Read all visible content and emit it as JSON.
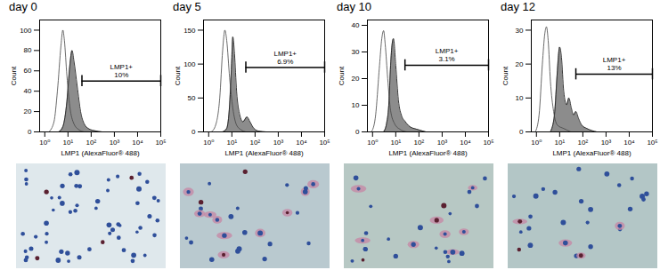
{
  "chart_data": [
    {
      "type": "area",
      "title": "day 0",
      "x_label": "LMP1 (AlexaFluor® 488)",
      "y_label": "Count",
      "log": "x",
      "xlim": [
        0.6,
        100000
      ],
      "xticks": [
        {
          "value": 1,
          "label": "10⁰"
        },
        {
          "value": 10,
          "label": "10¹"
        },
        {
          "value": 100,
          "label": "10²"
        },
        {
          "value": 1000,
          "label": "10³"
        },
        {
          "value": 10000,
          "label": "10⁴"
        },
        {
          "value": 100000,
          "label": "10⁵"
        }
      ],
      "ylim": [
        0,
        110
      ],
      "yticks": [
        0,
        20,
        40,
        60,
        80,
        100
      ],
      "series": [
        {
          "color": "#8c8c8c",
          "x": [
            4,
            6,
            9,
            12,
            15,
            18,
            25,
            35,
            50,
            80,
            150,
            300
          ],
          "values": [
            0,
            5,
            30,
            65,
            80,
            70,
            45,
            20,
            8,
            3,
            1,
            0
          ]
        },
        {
          "color": "#ffffff",
          "x": [
            1.5,
            2.5,
            3.5,
            5,
            6,
            7,
            9,
            12,
            18,
            30,
            50
          ],
          "values": [
            0,
            10,
            40,
            85,
            100,
            90,
            55,
            25,
            8,
            2,
            0
          ]
        }
      ],
      "annotations": [
        {
          "text": "LMP1+",
          "subtext": "10%",
          "x": [
            40,
            100000
          ],
          "y": 50
        }
      ]
    },
    {
      "type": "area",
      "title": "day 5",
      "x_label": "LMP1 (AlexaFluor® 488)",
      "y_label": "Count",
      "log": "x",
      "xlim": [
        0.6,
        100000
      ],
      "xticks": [
        {
          "value": 1,
          "label": "10⁰"
        },
        {
          "value": 10,
          "label": "10¹"
        },
        {
          "value": 100,
          "label": "10²"
        },
        {
          "value": 1000,
          "label": "10³"
        },
        {
          "value": 10000,
          "label": "10⁴"
        },
        {
          "value": 100000,
          "label": "10⁵"
        }
      ],
      "ylim": [
        0,
        165
      ],
      "yticks": [
        0,
        50,
        100,
        150
      ],
      "series": [
        {
          "color": "#8c8c8c",
          "x": [
            4,
            6,
            8,
            10,
            11,
            13,
            16,
            22,
            30,
            45,
            60,
            90,
            150,
            300
          ],
          "values": [
            0,
            5,
            40,
            110,
            140,
            115,
            60,
            25,
            15,
            22,
            15,
            5,
            1,
            0
          ]
        },
        {
          "color": "#ffffff",
          "x": [
            1.3,
            2,
            3,
            4,
            5,
            6,
            8,
            11,
            16,
            25,
            40
          ],
          "values": [
            0,
            10,
            50,
            120,
            150,
            135,
            80,
            35,
            10,
            3,
            0
          ]
        }
      ],
      "annotations": [
        {
          "text": "LMP1+",
          "subtext": "6.9%",
          "x": [
            40,
            100000
          ],
          "y": 95
        }
      ]
    },
    {
      "type": "area",
      "title": "day 10",
      "x_label": "LMP1 (AlexaFluor® 488)",
      "y_label": "Count",
      "log": "x",
      "xlim": [
        0.6,
        100000
      ],
      "xticks": [
        {
          "value": 1,
          "label": "10⁰"
        },
        {
          "value": 10,
          "label": "10¹"
        },
        {
          "value": 100,
          "label": "10²"
        },
        {
          "value": 1000,
          "label": "10³"
        },
        {
          "value": 10000,
          "label": "10⁴"
        },
        {
          "value": 100000,
          "label": "10⁵"
        }
      ],
      "ylim": [
        0,
        42
      ],
      "yticks": [
        0,
        10,
        20,
        30,
        40
      ],
      "series": [
        {
          "color": "#8c8c8c",
          "x": [
            3,
            4,
            5,
            6,
            7,
            8,
            10,
            13,
            18,
            25,
            40,
            80,
            200
          ],
          "values": [
            0,
            3,
            10,
            25,
            33,
            35,
            25,
            12,
            6,
            4,
            2,
            1,
            0
          ]
        },
        {
          "color": "#ffffff",
          "x": [
            0.9,
            1.3,
            2,
            2.5,
            3,
            3.5,
            4.5,
            6,
            9,
            15,
            30
          ],
          "values": [
            0,
            5,
            25,
            35,
            38,
            33,
            20,
            8,
            3,
            1,
            0
          ]
        }
      ],
      "annotations": [
        {
          "text": "LMP1+",
          "subtext": "3.1%",
          "x": [
            25,
            100000
          ],
          "y": 25
        }
      ]
    },
    {
      "type": "area",
      "title": "day 12",
      "x_label": "LMP1 (AlexaFluor® 488)",
      "y_label": "Count",
      "log": "x",
      "xlim": [
        0.6,
        100000
      ],
      "xticks": [
        {
          "value": 1,
          "label": "10⁰"
        },
        {
          "value": 10,
          "label": "10¹"
        },
        {
          "value": 100,
          "label": "10²"
        },
        {
          "value": 1000,
          "label": "10³"
        },
        {
          "value": 10000,
          "label": "10⁴"
        },
        {
          "value": 100000,
          "label": "10⁵"
        }
      ],
      "ylim": [
        0,
        33
      ],
      "yticks": [
        0,
        10,
        20,
        30
      ],
      "series": [
        {
          "color": "#8c8c8c",
          "x": [
            4,
            6,
            8,
            10,
            12,
            15,
            20,
            25,
            32,
            40,
            50,
            65,
            90,
            150,
            400
          ],
          "values": [
            0,
            5,
            18,
            25,
            22,
            12,
            8,
            10,
            7,
            5,
            6,
            4,
            2,
            1,
            0
          ]
        },
        {
          "color": "#ffffff",
          "x": [
            0.9,
            1.3,
            1.8,
            2.3,
            2.7,
            3.2,
            4,
            5.5,
            8,
            15,
            30
          ],
          "values": [
            0,
            5,
            20,
            29,
            31,
            27,
            15,
            6,
            2,
            1,
            0
          ]
        }
      ],
      "annotations": [
        {
          "text": "LMP1+",
          "subtext": "13%",
          "x": [
            50,
            100000
          ],
          "y": 17
        }
      ]
    }
  ]
}
